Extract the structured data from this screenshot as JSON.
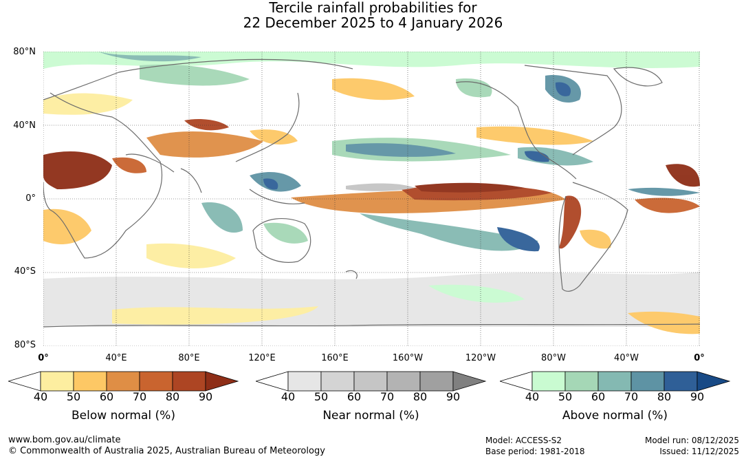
{
  "title": {
    "line1": "Tercile rainfall probabilities for",
    "line2": "22 December 2025 to 4 January 2026"
  },
  "map": {
    "lat_labels": [
      "80°N",
      "40°N",
      "0°",
      "40°S",
      "80°S"
    ],
    "lon_labels": [
      "0°",
      "40°E",
      "80°E",
      "120°E",
      "160°E",
      "160°W",
      "120°W",
      "80°W",
      "40°W",
      "0°"
    ]
  },
  "legends": [
    {
      "name": "below",
      "title": "Below normal (%)",
      "ticks": [
        "40",
        "50",
        "60",
        "70",
        "80",
        "90"
      ],
      "colors": [
        "#ffffff",
        "#fdeea0",
        "#fdc865",
        "#df8e45",
        "#c9642f",
        "#ad4523",
        "#8e2e17"
      ]
    },
    {
      "name": "near",
      "title": "Near normal (%)",
      "ticks": [
        "40",
        "50",
        "60",
        "70",
        "80",
        "90"
      ],
      "colors": [
        "#ffffff",
        "#e6e6e6",
        "#d4d4d4",
        "#c5c5c5",
        "#b3b3b3",
        "#a0a0a0",
        "#808080"
      ]
    },
    {
      "name": "above",
      "title": "Above normal (%)",
      "ticks": [
        "40",
        "50",
        "60",
        "70",
        "80",
        "90"
      ],
      "colors": [
        "#ffffff",
        "#c9fbd1",
        "#a5d7b6",
        "#84b9b2",
        "#5e93a4",
        "#2f5f97",
        "#184a86"
      ]
    }
  ],
  "footer": {
    "url": "www.bom.gov.au/climate",
    "copyright": "© Commonwealth of Australia 2025, Australian Bureau of Meteorology",
    "model": "Model: ACCESS-S2",
    "base_period": "Base period: 1981-2018",
    "model_run": "Model run: 08/12/2025",
    "issued": "Issued: 11/12/2025"
  }
}
